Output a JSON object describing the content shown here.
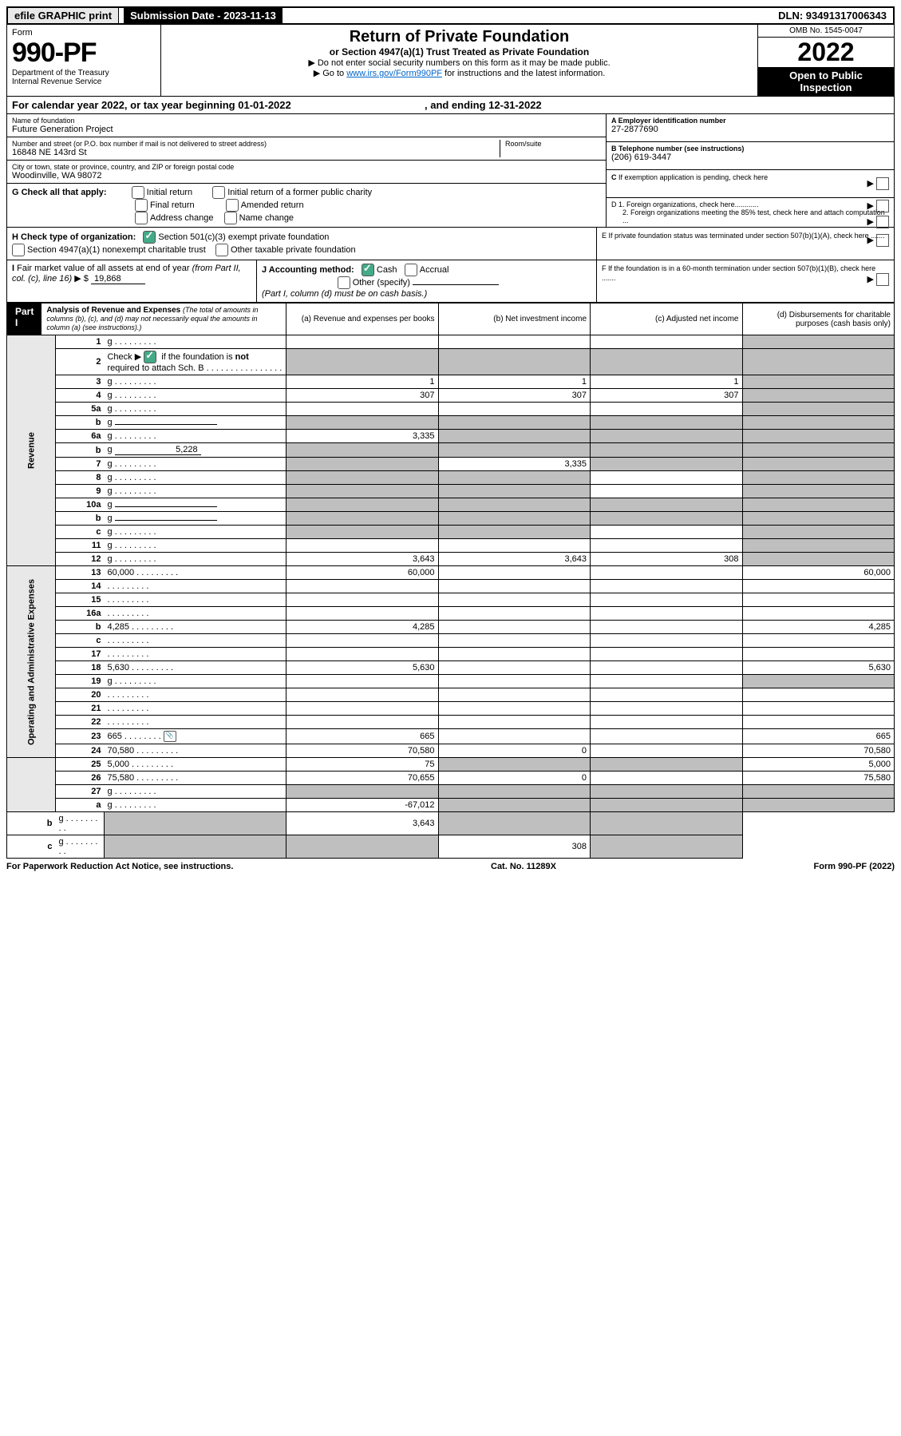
{
  "top": {
    "efile": "efile GRAPHIC print",
    "sub_label": "Submission Date - 2023-11-13",
    "dln": "DLN: 93491317006343"
  },
  "hdr": {
    "form_word": "Form",
    "form_num": "990-PF",
    "dept": "Department of the Treasury",
    "irs": "Internal Revenue Service",
    "title": "Return of Private Foundation",
    "subtitle": "or Section 4947(a)(1) Trust Treated as Private Foundation",
    "inst1": "▶ Do not enter social security numbers on this form as it may be made public.",
    "inst2_pre": "▶ Go to ",
    "inst2_link": "www.irs.gov/Form990PF",
    "inst2_post": " for instructions and the latest information.",
    "omb": "OMB No. 1545-0047",
    "year": "2022",
    "inspect": "Open to Public Inspection"
  },
  "cal": {
    "text_pre": "For calendar year 2022, or tax year beginning ",
    "begin": "01-01-2022",
    "mid": " , and ending ",
    "end": "12-31-2022"
  },
  "info": {
    "name_label": "Name of foundation",
    "name": "Future Generation Project",
    "addr_label": "Number and street (or P.O. box number if mail is not delivered to street address)",
    "room_label": "Room/suite",
    "addr": "16848 NE 143rd St",
    "city_label": "City or town, state or province, country, and ZIP or foreign postal code",
    "city": "Woodinville, WA  98072",
    "a_label": "A Employer identification number",
    "a_val": "27-2877690",
    "b_label": "B Telephone number (see instructions)",
    "b_val": "(206) 619-3447",
    "c_label": "C If exemption application is pending, check here",
    "d1": "D 1. Foreign organizations, check here............",
    "d2": "2. Foreign organizations meeting the 85% test, check here and attach computation ...",
    "e_label": "E  If private foundation status was terminated under section 507(b)(1)(A), check here .......",
    "f_label": "F  If the foundation is in a 60-month termination under section 507(b)(1)(B), check here .......",
    "g_label": "G Check all that apply:",
    "g_opts": [
      "Initial return",
      "Initial return of a former public charity",
      "Final return",
      "Amended return",
      "Address change",
      "Name change"
    ],
    "h_label": "H Check type of organization:",
    "h_opts": [
      "Section 501(c)(3) exempt private foundation",
      "Section 4947(a)(1) nonexempt charitable trust",
      "Other taxable private foundation"
    ],
    "i_label": "I Fair market value of all assets at end of year (from Part II, col. (c), line 16) ▶ $ ",
    "i_val": "19,868",
    "j_label": "J Accounting method:",
    "j_opts": [
      "Cash",
      "Accrual",
      "Other (specify)"
    ],
    "j_note": "(Part I, column (d) must be on cash basis.)"
  },
  "part1": {
    "label": "Part I",
    "title": "Analysis of Revenue and Expenses",
    "title_note": "(The total of amounts in columns (b), (c), and (d) may not necessarily equal the amounts in column (a) (see instructions).)",
    "cols": {
      "a": "(a)   Revenue and expenses per books",
      "b": "(b)   Net investment income",
      "c": "(c)   Adjusted net income",
      "d": "(d)   Disbursements for charitable purposes (cash basis only)"
    },
    "side_rev": "Revenue",
    "side_exp": "Operating and Administrative Expenses",
    "rows": [
      {
        "n": "1",
        "d": "g",
        "a": "",
        "b": "",
        "c": ""
      },
      {
        "n": "2",
        "d": "g",
        "a": "g",
        "b": "g",
        "c": "g",
        "checkbox": true
      },
      {
        "n": "3",
        "d": "g",
        "a": "1",
        "b": "1",
        "c": "1"
      },
      {
        "n": "4",
        "d": "g",
        "a": "307",
        "b": "307",
        "c": "307"
      },
      {
        "n": "5a",
        "d": "g",
        "a": "",
        "b": "",
        "c": ""
      },
      {
        "n": "b",
        "d": "g",
        "a": "g",
        "b": "g",
        "c": "g",
        "inline_blank": true
      },
      {
        "n": "6a",
        "d": "g",
        "a": "3,335",
        "b": "g",
        "c": "g"
      },
      {
        "n": "b",
        "d": "g",
        "a": "g",
        "b": "g",
        "c": "g",
        "inline_val": "5,228"
      },
      {
        "n": "7",
        "d": "g",
        "a": "g",
        "b": "3,335",
        "c": "g"
      },
      {
        "n": "8",
        "d": "g",
        "a": "g",
        "b": "g",
        "c": ""
      },
      {
        "n": "9",
        "d": "g",
        "a": "g",
        "b": "g",
        "c": ""
      },
      {
        "n": "10a",
        "d": "g",
        "a": "g",
        "b": "g",
        "c": "g",
        "inline_blank": true
      },
      {
        "n": "b",
        "d": "g",
        "a": "g",
        "b": "g",
        "c": "g",
        "inline_blank": true
      },
      {
        "n": "c",
        "d": "g",
        "a": "g",
        "b": "g",
        "c": ""
      },
      {
        "n": "11",
        "d": "g",
        "a": "",
        "b": "",
        "c": ""
      },
      {
        "n": "12",
        "d": "g",
        "a": "3,643",
        "b": "3,643",
        "c": "308"
      },
      {
        "n": "13",
        "d": "60,000",
        "a": "60,000",
        "b": "",
        "c": "",
        "section": "exp"
      },
      {
        "n": "14",
        "d": "",
        "a": "",
        "b": "",
        "c": ""
      },
      {
        "n": "15",
        "d": "",
        "a": "",
        "b": "",
        "c": ""
      },
      {
        "n": "16a",
        "d": "",
        "a": "",
        "b": "",
        "c": ""
      },
      {
        "n": "b",
        "d": "4,285",
        "a": "4,285",
        "b": "",
        "c": ""
      },
      {
        "n": "c",
        "d": "",
        "a": "",
        "b": "",
        "c": ""
      },
      {
        "n": "17",
        "d": "",
        "a": "",
        "b": "",
        "c": ""
      },
      {
        "n": "18",
        "d": "5,630",
        "a": "5,630",
        "b": "",
        "c": ""
      },
      {
        "n": "19",
        "d": "g",
        "a": "",
        "b": "",
        "c": ""
      },
      {
        "n": "20",
        "d": "",
        "a": "",
        "b": "",
        "c": ""
      },
      {
        "n": "21",
        "d": "",
        "a": "",
        "b": "",
        "c": ""
      },
      {
        "n": "22",
        "d": "",
        "a": "",
        "b": "",
        "c": ""
      },
      {
        "n": "23",
        "d": "665",
        "a": "665",
        "b": "",
        "c": "",
        "icon": true
      },
      {
        "n": "24",
        "d": "70,580",
        "a": "70,580",
        "b": "0",
        "c": ""
      },
      {
        "n": "25",
        "d": "5,000",
        "a": "75",
        "b": "g",
        "c": "g"
      },
      {
        "n": "26",
        "d": "75,580",
        "a": "70,655",
        "b": "0",
        "c": ""
      },
      {
        "n": "27",
        "d": "g",
        "a": "g",
        "b": "g",
        "c": "g",
        "section": "end"
      },
      {
        "n": "a",
        "d": "g",
        "a": "-67,012",
        "b": "g",
        "c": "g"
      },
      {
        "n": "b",
        "d": "g",
        "a": "g",
        "b": "3,643",
        "c": "g"
      },
      {
        "n": "c",
        "d": "g",
        "a": "g",
        "b": "g",
        "c": "308"
      }
    ]
  },
  "footer": {
    "left": "For Paperwork Reduction Act Notice, see instructions.",
    "mid": "Cat. No. 11289X",
    "right": "Form 990-PF (2022)"
  }
}
